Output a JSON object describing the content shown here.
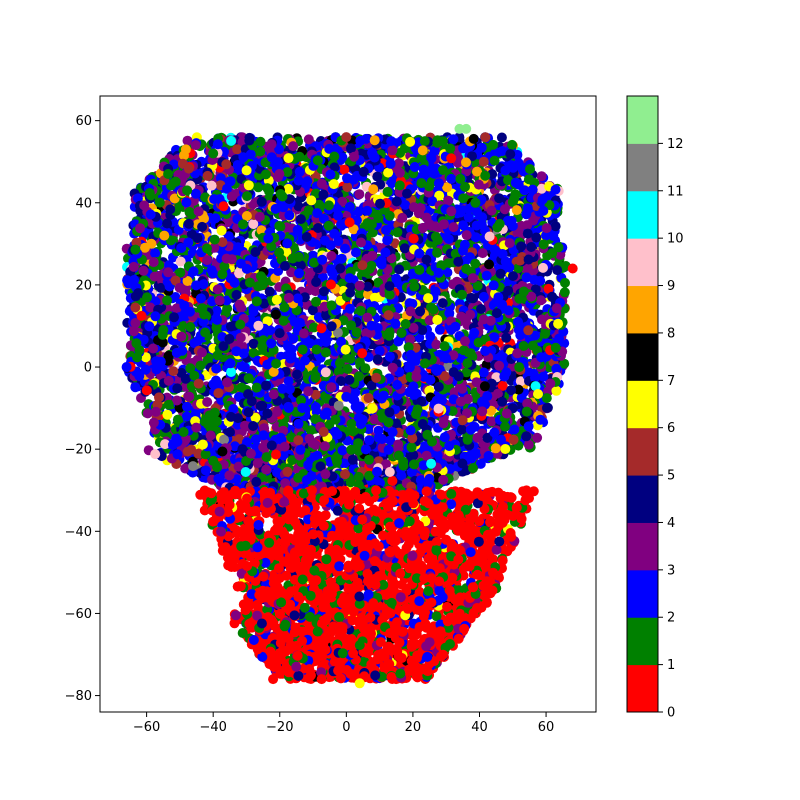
{
  "chart_data": {
    "type": "scatter",
    "title": "",
    "xlabel": "",
    "ylabel": "",
    "xlim": [
      -74,
      75
    ],
    "ylim": [
      -84,
      66
    ],
    "xticks": [
      -60,
      -40,
      -20,
      0,
      20,
      40,
      60
    ],
    "yticks": [
      -80,
      -60,
      -40,
      -20,
      0,
      20,
      40,
      60
    ],
    "grid": false,
    "legend": "none",
    "colorbar": {
      "placement": "right",
      "ticks": [
        0,
        1,
        2,
        3,
        4,
        5,
        6,
        7,
        8,
        9,
        10,
        11,
        12
      ],
      "range": [
        0,
        13
      ],
      "colors": [
        "#ff0000",
        "#008000",
        "#0000ff",
        "#800080",
        "#000080",
        "#a52a2a",
        "#ffff00",
        "#000000",
        "#ffa500",
        "#ffc0cb",
        "#00ffff",
        "#808080",
        "#90ee90"
      ]
    },
    "point_groups": [
      {
        "name": "upper-cluster",
        "x_range": [
          -68,
          68
        ],
        "y_range": [
          -32,
          56
        ],
        "labels": [
          1,
          2,
          3,
          4,
          5,
          6,
          7,
          8,
          9,
          10,
          11
        ],
        "dominant": [
          1,
          2,
          3,
          4
        ]
      },
      {
        "name": "lower-cluster",
        "x_range": [
          -35,
          45
        ],
        "y_range": [
          -77,
          -30
        ],
        "labels": [
          0,
          1,
          2,
          3,
          4,
          6
        ],
        "dominant": [
          0
        ]
      }
    ],
    "sample_points": [
      {
        "x": 36,
        "y": 58,
        "label": 12
      },
      {
        "x": 34,
        "y": 58,
        "label": 12
      },
      {
        "x": 68,
        "y": 24,
        "label": 0
      },
      {
        "x": -66,
        "y": 0,
        "label": 2
      },
      {
        "x": 4,
        "y": -77,
        "label": 6
      },
      {
        "x": -22,
        "y": -76,
        "label": 0
      },
      {
        "x": 25,
        "y": -67,
        "label": 3
      },
      {
        "x": 24,
        "y": -68,
        "label": 3
      },
      {
        "x": 0,
        "y": 56,
        "label": 5
      },
      {
        "x": -40,
        "y": 52,
        "label": 1
      }
    ]
  }
}
